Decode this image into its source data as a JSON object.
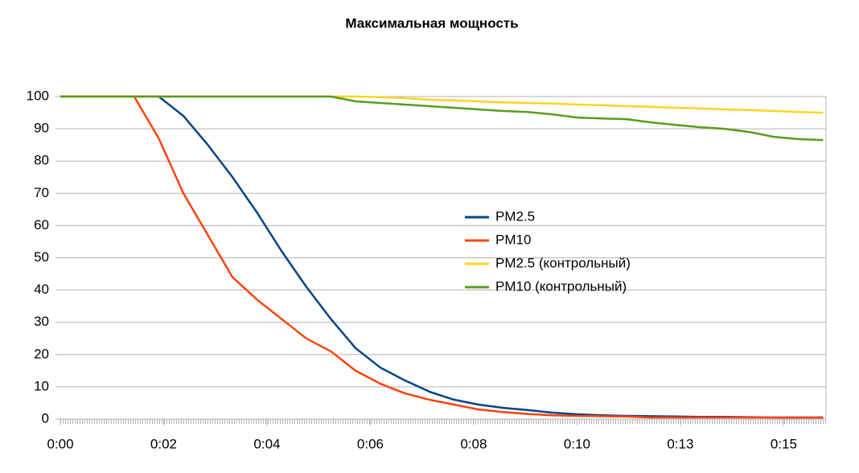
{
  "chart_data": {
    "type": "line",
    "title": "Максимальная мощность",
    "x": [
      0,
      0.5,
      1,
      1.5,
      2,
      2.5,
      3,
      3.5,
      4,
      4.5,
      5,
      5.5,
      6,
      6.5,
      7,
      7.5,
      8,
      8.5,
      9,
      9.5,
      10,
      10.5,
      11,
      11.5,
      12,
      12.5,
      13,
      13.5,
      14,
      14.5,
      15,
      15.5
    ],
    "series": [
      {
        "name": "PM2.5",
        "color": "#004586",
        "values": [
          100,
          100,
          100,
          100,
          100,
          94,
          85,
          75,
          64,
          52,
          41,
          31,
          22,
          16,
          12,
          8.5,
          6,
          4.5,
          3.5,
          2.8,
          2,
          1.5,
          1.2,
          1,
          0.9,
          0.8,
          0.7,
          0.7,
          0.6,
          0.5,
          0.5,
          0.5
        ]
      },
      {
        "name": "PM10",
        "color": "#ff420e",
        "values": [
          100,
          100,
          100,
          100,
          87,
          70,
          57,
          44,
          37,
          31,
          25,
          21,
          15,
          11,
          8,
          6,
          4.5,
          3,
          2.2,
          1.6,
          1.2,
          1,
          0.9,
          0.8,
          0.5,
          0.5,
          0.5,
          0.5,
          0.5,
          0.5,
          0.5,
          0.5
        ]
      },
      {
        "name": "PM2.5 (контрольный)",
        "color": "#ffd320",
        "values": [
          100,
          100,
          100,
          100,
          100,
          100,
          100,
          100,
          100,
          100,
          100,
          100,
          100,
          99.8,
          99.5,
          99,
          98.8,
          98.5,
          98.2,
          98,
          97.8,
          97.5,
          97.3,
          97,
          96.8,
          96.5,
          96.3,
          96,
          95.8,
          95.5,
          95.2,
          95
        ]
      },
      {
        "name": "PM10 (контрольный)",
        "color": "#579d1c",
        "values": [
          100,
          100,
          100,
          100,
          100,
          100,
          100,
          100,
          100,
          100,
          100,
          100,
          98.5,
          98,
          97.5,
          97,
          96.5,
          96,
          95.5,
          95.2,
          94.5,
          93.5,
          93.2,
          93,
          92,
          91.2,
          90.5,
          90,
          89,
          87.5,
          86.8,
          86.5
        ]
      }
    ],
    "xlim": [
      0,
      15.56
    ],
    "xticks": [
      {
        "value": 0,
        "label": "0:00"
      },
      {
        "value": 2.1,
        "label": "0:02"
      },
      {
        "value": 4.2,
        "label": "0:04"
      },
      {
        "value": 6.3,
        "label": "0:06"
      },
      {
        "value": 8.4,
        "label": "0:08"
      },
      {
        "value": 10.5,
        "label": "0:10"
      },
      {
        "value": 12.6,
        "label": "0:13"
      },
      {
        "value": 14.7,
        "label": "0:15"
      }
    ],
    "ylim": [
      0,
      100
    ],
    "yticks": [
      0,
      10,
      20,
      30,
      40,
      50,
      60,
      70,
      80,
      90,
      100
    ],
    "grid": true,
    "legend": "center"
  }
}
